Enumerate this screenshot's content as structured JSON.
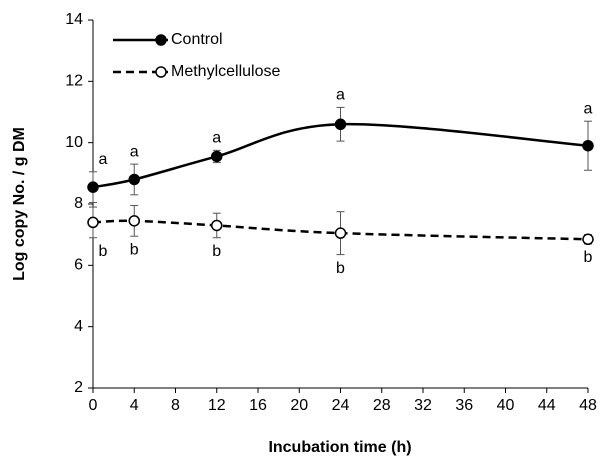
{
  "chart_data": {
    "type": "line",
    "xlabel": "Incubation time (h)",
    "ylabel": "Log copy No. / g DM",
    "series": [
      {
        "name": "Control",
        "color": "#000000",
        "dashed": false,
        "filled": true,
        "x": [
          0,
          4,
          12,
          24,
          48
        ],
        "values": [
          8.55,
          8.8,
          9.55,
          10.6,
          9.9
        ],
        "errors": [
          0.5,
          0.5,
          0.2,
          0.55,
          0.8
        ],
        "labels": [
          "a",
          "a",
          "a",
          "a",
          "a"
        ]
      },
      {
        "name": "Methylcellulose",
        "color": "#000000",
        "dashed": true,
        "filled": false,
        "x": [
          0,
          4,
          12,
          24,
          48
        ],
        "values": [
          7.4,
          7.45,
          7.3,
          7.05,
          6.85
        ],
        "errors": [
          0.5,
          0.5,
          0.4,
          0.7,
          0.15
        ],
        "labels": [
          "b",
          "b",
          "b",
          "b",
          "b"
        ]
      }
    ],
    "xlim": [
      0,
      48
    ],
    "xticks": [
      0,
      4,
      8,
      12,
      16,
      20,
      24,
      28,
      32,
      36,
      40,
      44,
      48
    ],
    "ylim": [
      2,
      14
    ],
    "yticks": [
      2,
      4,
      6,
      8,
      10,
      12,
      14
    ],
    "legend": "top-left",
    "grid": false
  }
}
